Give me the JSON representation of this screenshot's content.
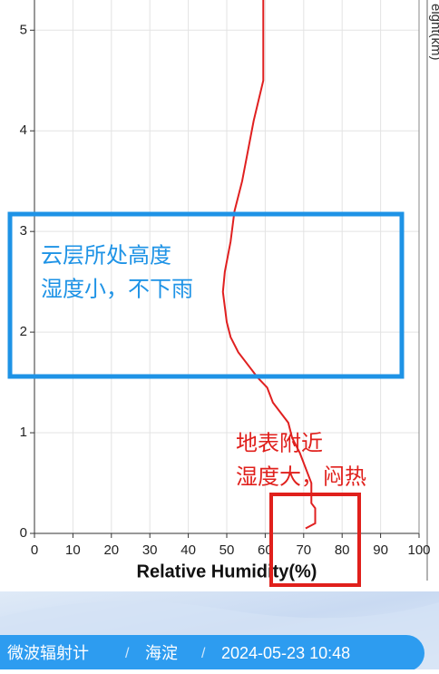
{
  "chart_data": {
    "type": "line",
    "x_label": "Relative Humidity(%)",
    "y_label": "eight(km)",
    "series": [
      {
        "color": "#e02020",
        "x": [
          70.5,
          73,
          73,
          72,
          72,
          71,
          69,
          67,
          66,
          64,
          62,
          60.5,
          58,
          56,
          53,
          51,
          50,
          49,
          49.5,
          51,
          52,
          54,
          55.5,
          57,
          59.5,
          59.5
        ],
        "values": [
          0.05,
          0.1,
          0.25,
          0.3,
          0.5,
          0.6,
          0.8,
          0.95,
          1.1,
          1.2,
          1.3,
          1.45,
          1.55,
          1.65,
          1.8,
          1.95,
          2.1,
          2.4,
          2.6,
          2.9,
          3.2,
          3.5,
          3.8,
          4.1,
          4.5,
          5.3
        ]
      }
    ],
    "xlim": [
      0,
      100
    ],
    "xticks": [
      0,
      10,
      20,
      30,
      40,
      50,
      60,
      70,
      80,
      90,
      100
    ],
    "ylim": [
      0,
      5.3
    ],
    "yticks": [
      0,
      1,
      2,
      3,
      4,
      5
    ],
    "grid": true,
    "annotations": [
      {
        "lines": [
          "云层所处高度",
          "湿度小，不下雨"
        ],
        "color": "#1e93e6"
      },
      {
        "lines": [
          "地表附近",
          "湿度大，闷热"
        ],
        "color": "#e0201c"
      }
    ]
  },
  "footer": {
    "items": [
      "微波辐射计",
      "海淀",
      "2024-05-23 10:48"
    ],
    "separator": "/"
  }
}
